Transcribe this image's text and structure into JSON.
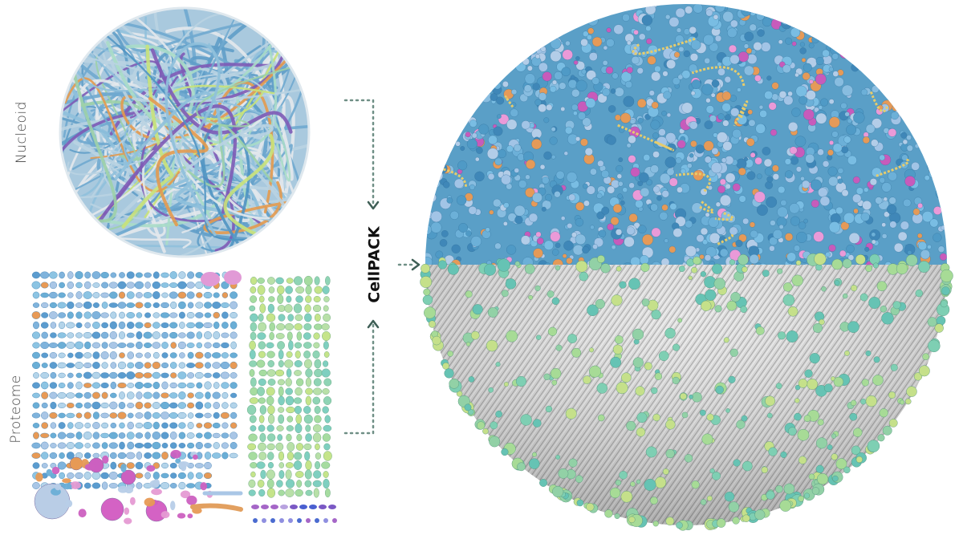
{
  "labels": {
    "nucleoid": "Nucleoid",
    "proteome": "Proteome",
    "method": "CellPACK"
  }
}
